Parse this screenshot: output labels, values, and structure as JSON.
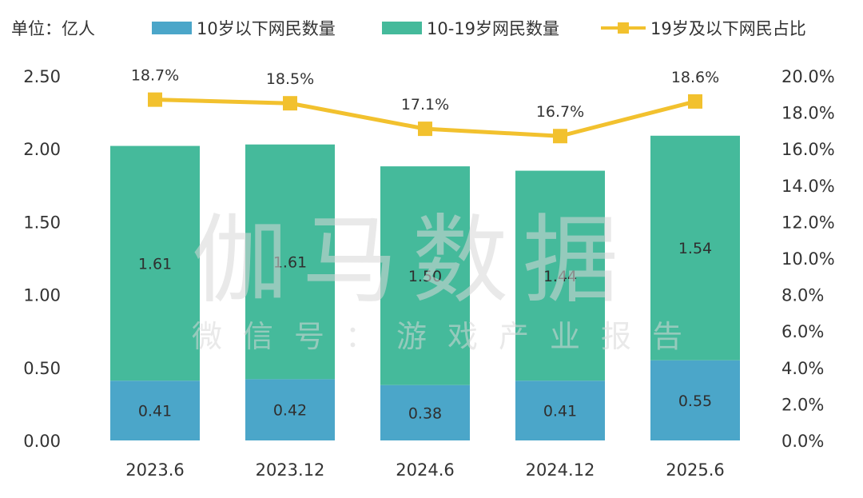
{
  "chart_data": {
    "type": "bar",
    "stacked": true,
    "unit_label": "单位：亿人",
    "categories": [
      "2023.6",
      "2023.12",
      "2024.6",
      "2024.12",
      "2025.6"
    ],
    "series": [
      {
        "name": "10岁以下网民数量",
        "type": "bar",
        "axis": "left",
        "color": "#4BA6C9",
        "values": [
          0.41,
          0.42,
          0.38,
          0.41,
          0.55
        ],
        "labels": [
          "0.41",
          "0.42",
          "0.38",
          "0.41",
          "0.55"
        ]
      },
      {
        "name": "10-19岁网民数量",
        "type": "bar",
        "axis": "left",
        "color": "#45BA9B",
        "values": [
          1.61,
          1.61,
          1.5,
          1.44,
          1.54
        ],
        "labels": [
          "1.61",
          "1.61",
          "1.50",
          "1.44",
          "1.54"
        ]
      },
      {
        "name": "19岁及以下网民占比",
        "type": "line",
        "axis": "right",
        "color": "#F2C12E",
        "values": [
          18.7,
          18.5,
          17.1,
          16.7,
          18.6
        ],
        "labels": [
          "18.7%",
          "18.5%",
          "17.1%",
          "16.7%",
          "18.6%"
        ]
      }
    ],
    "y_left": {
      "min": 0,
      "max": 2.5,
      "ticks": [
        "0.00",
        "0.50",
        "1.00",
        "1.50",
        "2.00",
        "2.50"
      ]
    },
    "y_right": {
      "min": 0,
      "max": 20,
      "ticks": [
        "0.0%",
        "2.0%",
        "4.0%",
        "6.0%",
        "8.0%",
        "10.0%",
        "12.0%",
        "14.0%",
        "16.0%",
        "18.0%",
        "20.0%"
      ]
    },
    "grid": false,
    "legend_position": "top"
  },
  "watermark": {
    "main": "伽马数据",
    "sub": "微信号：游戏产业报告"
  }
}
